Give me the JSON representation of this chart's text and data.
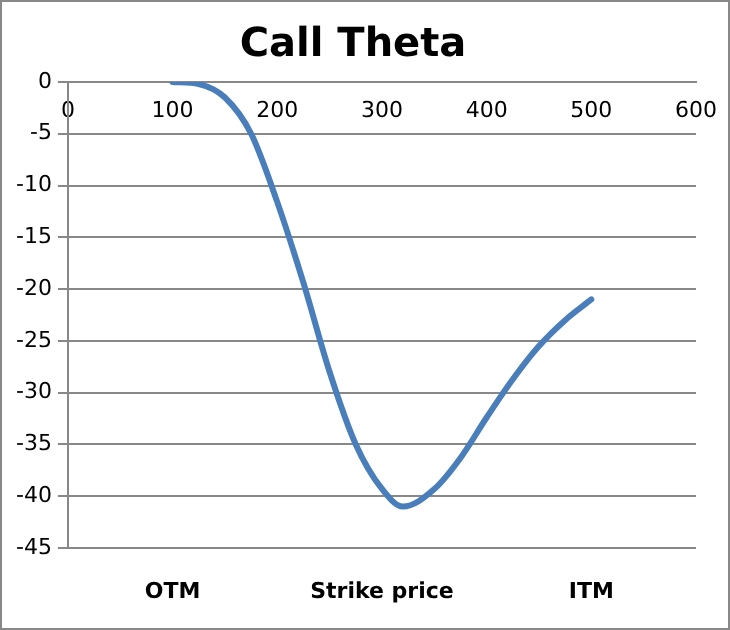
{
  "chart_data": {
    "type": "line",
    "title": "Call Theta",
    "x": [
      100,
      125,
      150,
      175,
      200,
      225,
      250,
      275,
      300,
      320,
      350,
      375,
      400,
      425,
      450,
      475,
      500
    ],
    "series": [
      {
        "color": "#4a7ebb",
        "values": [
          0,
          -0.2,
          -1.5,
          -5,
          -11.6,
          -19.4,
          -28,
          -35,
          -39.3,
          -41,
          -39.3,
          -36.3,
          -32.4,
          -28.7,
          -25.5,
          -23,
          -21
        ]
      }
    ],
    "xlim": [
      0,
      600
    ],
    "xticks": [
      0,
      100,
      200,
      300,
      400,
      500,
      600
    ],
    "ylim": [
      -45,
      0
    ],
    "yticks": [
      -45,
      -40,
      -35,
      -30,
      -25,
      -20,
      -15,
      -10,
      -5,
      0
    ],
    "grid": "y",
    "legend": false,
    "marker": "none",
    "line_style": "solid",
    "annotations": [
      "OTM",
      "Strike price",
      "ITM"
    ]
  }
}
